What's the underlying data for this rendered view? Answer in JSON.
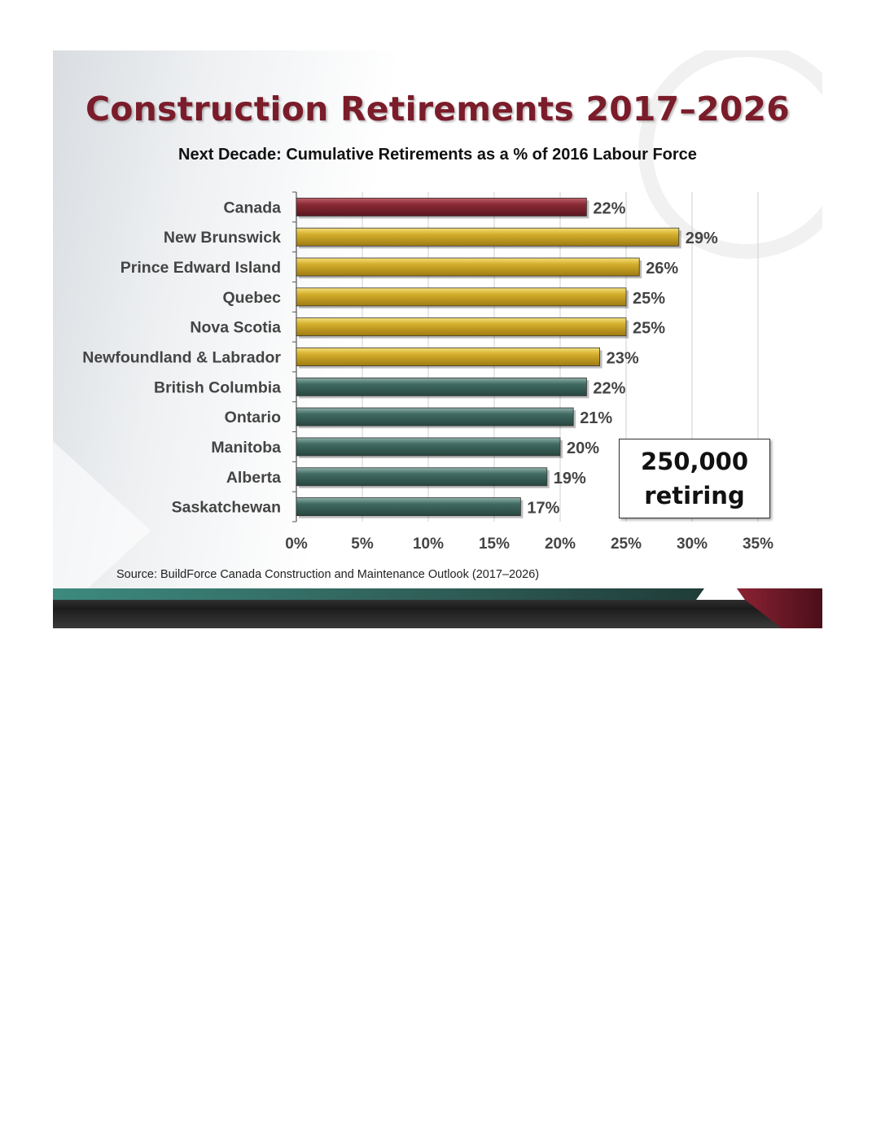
{
  "slide": {
    "title": "Construction Retirements 2017–2026",
    "subtitle": "Next Decade: Cumulative Retirements as a % of 2016 Labour Force",
    "callout_line1": "250,000",
    "callout_line2": "retiring",
    "source": "Source: BuildForce Canada Construction and Maintenance Outlook (2017–2026)"
  },
  "colors": {
    "title": "#7b1c2a",
    "national": "#8a2a35",
    "atlantic_quebec": "#d4ae2c",
    "western_ontario": "#3f6a62",
    "band_teal": "#2f7a70",
    "band_maroon": "#6b1725"
  },
  "chart_data": {
    "type": "bar",
    "orientation": "horizontal",
    "categories": [
      "Canada",
      "New Brunswick",
      "Prince Edward Island",
      "Quebec",
      "Nova Scotia",
      "Newfoundland & Labrador",
      "British Columbia",
      "Ontario",
      "Manitoba",
      "Alberta",
      "Saskatchewan"
    ],
    "values": [
      22,
      29,
      26,
      25,
      25,
      23,
      22,
      21,
      20,
      19,
      17
    ],
    "value_labels": [
      "22%",
      "29%",
      "26%",
      "25%",
      "25%",
      "23%",
      "22%",
      "21%",
      "20%",
      "19%",
      "17%"
    ],
    "bar_groups": [
      "national",
      "atlantic_quebec",
      "atlantic_quebec",
      "atlantic_quebec",
      "atlantic_quebec",
      "atlantic_quebec",
      "western_ontario",
      "western_ontario",
      "western_ontario",
      "western_ontario",
      "western_ontario"
    ],
    "x_ticks": [
      "0%",
      "5%",
      "10%",
      "15%",
      "20%",
      "25%",
      "30%",
      "35%"
    ],
    "xlim": [
      0,
      35
    ],
    "grid": "vertical gridlines",
    "title": "Next Decade: Cumulative Retirements as a % of 2016 Labour Force",
    "xlabel": "",
    "ylabel": ""
  }
}
